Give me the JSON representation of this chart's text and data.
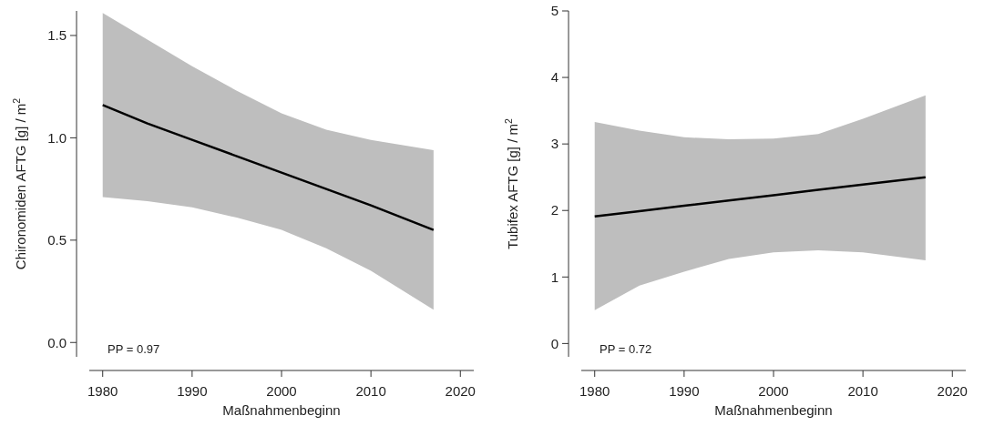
{
  "chart_data": [
    {
      "type": "line",
      "xlabel": "Maßnahmenbeginn",
      "ylabel": "Chironomiden AFTG [g] / m$^{2}$",
      "xlim": [
        1978.5,
        2021.5
      ],
      "xticks": [
        1980,
        1990,
        2000,
        2010,
        2020
      ],
      "ylim": [
        -0.07,
        1.62
      ],
      "yticks": [
        {
          "value": 0,
          "label": "0.0"
        },
        0.5,
        {
          "value": 1,
          "label": "1.0"
        },
        1.5
      ],
      "annotations": [
        "PP = 0.97"
      ],
      "series": [
        {
          "color": "#000000",
          "x": [
            1980,
            1985,
            1990,
            1995,
            2000,
            2005,
            2010,
            2017
          ],
          "values": [
            1.16,
            1.07,
            0.99,
            0.91,
            0.83,
            0.75,
            0.67,
            0.55
          ],
          "lower": [
            0.71,
            0.69,
            0.66,
            0.61,
            0.55,
            0.46,
            0.35,
            0.16
          ],
          "upper": [
            1.61,
            1.48,
            1.35,
            1.23,
            1.12,
            1.04,
            0.99,
            0.94
          ]
        }
      ]
    },
    {
      "type": "line",
      "xlabel": "Maßnahmenbeginn",
      "ylabel": "Tubifex AFTG [g] / m$^{2}$",
      "xlim": [
        1978.5,
        2021.5
      ],
      "xticks": [
        1980,
        1990,
        2000,
        2010,
        2020
      ],
      "ylim": [
        -0.2,
        5
      ],
      "yticks": [
        0,
        1,
        2,
        3,
        4,
        5
      ],
      "annotations": [
        "PP = 0.72"
      ],
      "series": [
        {
          "color": "#000000",
          "x": [
            1980,
            1985,
            1990,
            1995,
            2000,
            2005,
            2010,
            2017
          ],
          "values": [
            1.91,
            1.99,
            2.07,
            2.15,
            2.23,
            2.31,
            2.39,
            2.5
          ],
          "lower": [
            0.5,
            0.87,
            1.08,
            1.27,
            1.37,
            1.4,
            1.37,
            1.25
          ],
          "upper": [
            3.33,
            3.2,
            3.1,
            3.07,
            3.08,
            3.15,
            3.38,
            3.73
          ]
        }
      ]
    }
  ]
}
